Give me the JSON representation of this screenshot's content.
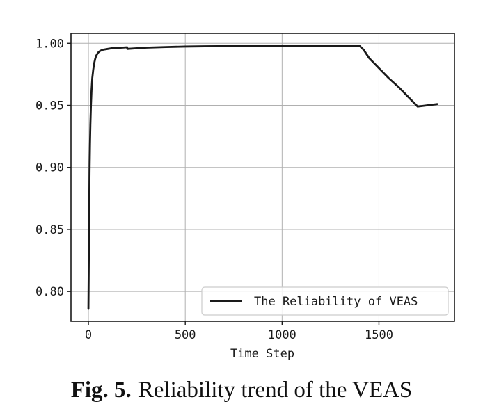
{
  "chart_data": {
    "type": "line",
    "title": "",
    "xlabel": "Time Step",
    "ylabel": "",
    "xlim": [
      -90,
      1890
    ],
    "ylim": [
      0.776,
      1.008
    ],
    "grid": true,
    "legend_position": "bottom-right",
    "x_ticks": [
      0,
      500,
      1000,
      1500
    ],
    "x_tick_labels": [
      "0",
      "500",
      "1000",
      "1500"
    ],
    "y_ticks": [
      0.8,
      0.85,
      0.9,
      0.95,
      1.0
    ],
    "y_tick_labels": [
      "0.80",
      "0.85",
      "0.90",
      "0.95",
      "1.00"
    ],
    "series": [
      {
        "name": "The Reliability of VEAS",
        "color": "#1a1a1a",
        "x": [
          0,
          2,
          4,
          6,
          8,
          10,
          13,
          16,
          20,
          25,
          30,
          35,
          40,
          50,
          60,
          70,
          80,
          100,
          120,
          150,
          180,
          200,
          201,
          250,
          300,
          400,
          500,
          600,
          800,
          1000,
          1200,
          1400,
          1420,
          1450,
          1500,
          1550,
          1600,
          1650,
          1700,
          1750,
          1800
        ],
        "y": [
          0.786,
          0.826,
          0.868,
          0.898,
          0.919,
          0.934,
          0.95,
          0.962,
          0.972,
          0.979,
          0.984,
          0.9875,
          0.99,
          0.9925,
          0.9938,
          0.9945,
          0.995,
          0.9955,
          0.996,
          0.9963,
          0.9966,
          0.9968,
          0.9955,
          0.996,
          0.9965,
          0.997,
          0.9974,
          0.9976,
          0.9978,
          0.9979,
          0.9979,
          0.998,
          0.995,
          0.988,
          0.98,
          0.972,
          0.965,
          0.957,
          0.949,
          0.95,
          0.951
        ]
      }
    ]
  },
  "caption": {
    "figure_number": "Fig. 5.",
    "text": "Reliability trend of the VEAS"
  }
}
